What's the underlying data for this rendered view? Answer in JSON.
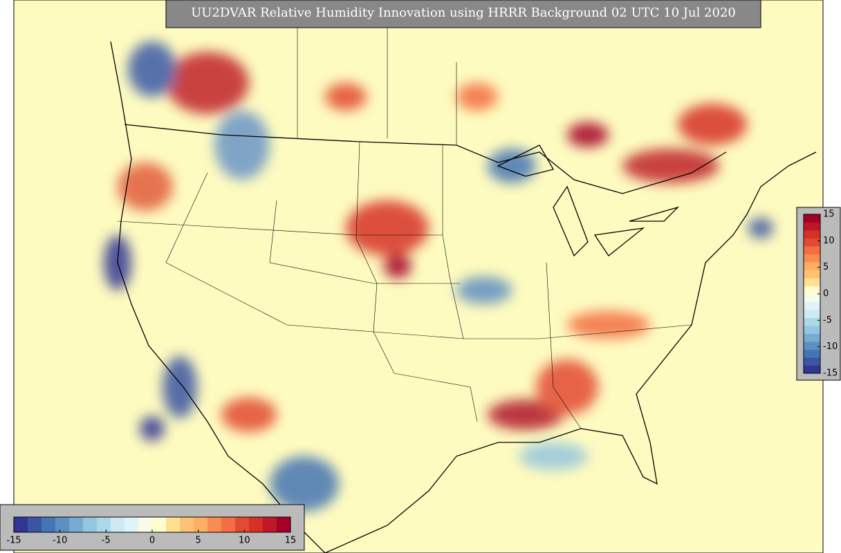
{
  "title": "UU2DVAR Relative Humidity Innovation using HRRR Background 02 UTC 10 Jul 2020",
  "colormap": [
    "#313695",
    "#3a55a3",
    "#4575b4",
    "#5f8fc2",
    "#74add1",
    "#94c6df",
    "#abd9e9",
    "#cfe9f2",
    "#e0f3f8",
    "#f7fbe8",
    "#fffcd0",
    "#fee090",
    "#fdc374",
    "#fdae61",
    "#f88d52",
    "#f46d43",
    "#e34a33",
    "#d73027",
    "#be1826",
    "#a50026"
  ],
  "colorbars": [
    {
      "orientation": "horizontal",
      "lim": [
        -15,
        15
      ],
      "ticks": [
        -15,
        -10,
        -5,
        0,
        5,
        10,
        15
      ]
    },
    {
      "orientation": "vertical",
      "lim": [
        -15,
        15
      ],
      "ticks": [
        15,
        10,
        5,
        0,
        -5,
        -10,
        -15
      ]
    }
  ]
}
